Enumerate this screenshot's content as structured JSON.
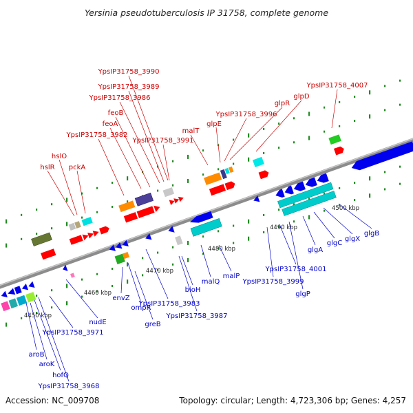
{
  "title": "Yersinia pseudotuberculosis IP 31758, complete genome",
  "footer": {
    "accession": "Accession: NC_009708",
    "summary": "Topology: circular; Length: 4,723,306 bp; Genes: 4,257"
  },
  "scale_labels": [
    "4450 kbp",
    "4460 kbp",
    "4470 kbp",
    "4480 kbp",
    "4490 kbp",
    "4500 kbp"
  ],
  "top_labels": [
    "YpsIP31758_3990",
    "YpsIP31758_3989",
    "YpsIP31758_3986",
    "feoB",
    "feoA",
    "YpsIP31758_3982",
    "YpsIP31758_3991",
    "malT",
    "glpE",
    "YpsIP31758_3996",
    "glpR",
    "glpD",
    "YpsIP31758_4007",
    "hslO",
    "hslR",
    "pckA"
  ],
  "bottom_labels": [
    "aroB",
    "aroK",
    "hofQ",
    "YpsIP31758_3968",
    "YpsIP31758_3971",
    "nudE",
    "envZ",
    "ompR",
    "greB",
    "YpsIP31758_3983",
    "YpsIP31758_3987",
    "bioH",
    "malQ",
    "malP",
    "YpsIP31758_3999",
    "YpsIP31758_4001",
    "glgP",
    "glgA",
    "glgC",
    "glgX",
    "glgB"
  ],
  "colors": {
    "forward_label": "#cc0000",
    "reverse_label": "#0000cc",
    "axis": "#808080"
  }
}
